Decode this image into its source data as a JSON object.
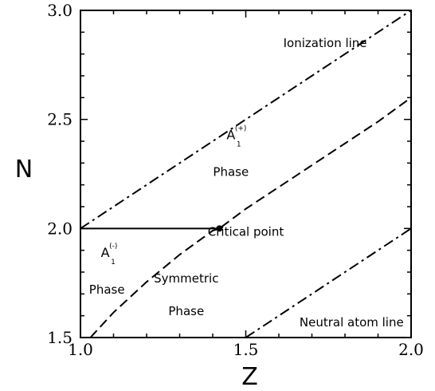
{
  "chart_data": {
    "type": "line",
    "title": "",
    "xlabel": "Z",
    "ylabel": "N",
    "xlim": [
      1.0,
      2.0
    ],
    "ylim": [
      1.5,
      3.0
    ],
    "x_ticks": [
      1.0,
      1.5,
      2.0
    ],
    "x_tick_labels": [
      "1.0",
      "1.5",
      "2.0"
    ],
    "y_ticks": [
      1.5,
      2.0,
      2.5,
      3.0
    ],
    "y_tick_labels": [
      "1.5",
      "2.0",
      "2.5",
      "3.0"
    ],
    "grid": false,
    "series": [
      {
        "style": "dash-dot",
        "x": [
          1.0,
          2.0
        ],
        "y": [
          2.0,
          3.0
        ]
      },
      {
        "style": "dash-dot",
        "x": [
          1.5,
          2.0
        ],
        "y": [
          1.5,
          2.0
        ]
      },
      {
        "style": "dashed",
        "x": [
          1.03,
          1.1,
          1.2,
          1.3,
          1.4,
          1.42,
          1.5,
          1.6,
          1.7,
          1.8,
          1.9,
          2.0
        ],
        "y": [
          1.5,
          1.615,
          1.755,
          1.88,
          1.99,
          2.0,
          2.09,
          2.19,
          2.29,
          2.39,
          2.49,
          2.6
        ]
      },
      {
        "style": "solid",
        "x": [
          1.0,
          1.42
        ],
        "y": [
          2.0,
          2.0
        ]
      }
    ],
    "points": [
      {
        "x": 1.42,
        "y": 2.0
      }
    ],
    "annotations": [
      {
        "text": "Ionization line",
        "x": 1.74,
        "y": 2.85
      },
      {
        "text": "A",
        "sub": "1",
        "sup": "(+)",
        "x": 1.455,
        "y": 2.41
      },
      {
        "text": "Phase",
        "x": 1.455,
        "y": 2.26
      },
      {
        "text": "Critical point",
        "x": 1.5,
        "y": 1.985
      },
      {
        "text": "A",
        "sub": "1",
        "sup": "(-)",
        "x": 1.075,
        "y": 1.87
      },
      {
        "text": "Phase",
        "x": 1.08,
        "y": 1.72
      },
      {
        "text": "Symmetric",
        "x": 1.32,
        "y": 1.77
      },
      {
        "text": "Phase",
        "x": 1.32,
        "y": 1.62
      },
      {
        "text": "Neutral atom line",
        "x": 1.82,
        "y": 1.57
      }
    ]
  }
}
